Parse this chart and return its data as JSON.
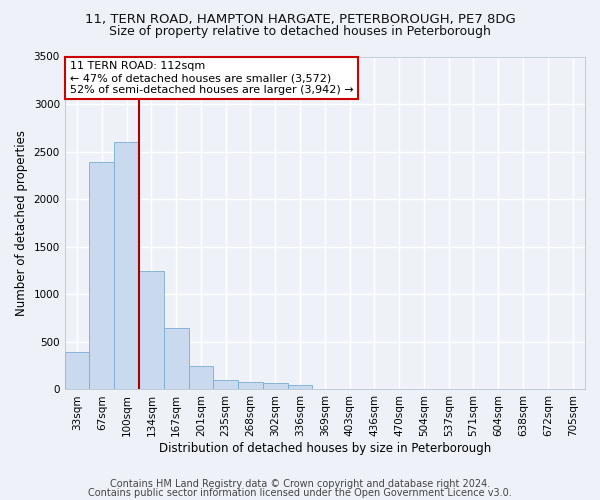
{
  "title1": "11, TERN ROAD, HAMPTON HARGATE, PETERBOROUGH, PE7 8DG",
  "title2": "Size of property relative to detached houses in Peterborough",
  "xlabel": "Distribution of detached houses by size in Peterborough",
  "ylabel": "Number of detached properties",
  "bar_color": "#c9d9ee",
  "bar_edge_color": "#7aaed4",
  "categories": [
    "33sqm",
    "67sqm",
    "100sqm",
    "134sqm",
    "167sqm",
    "201sqm",
    "235sqm",
    "268sqm",
    "302sqm",
    "336sqm",
    "369sqm",
    "403sqm",
    "436sqm",
    "470sqm",
    "504sqm",
    "537sqm",
    "571sqm",
    "604sqm",
    "638sqm",
    "672sqm",
    "705sqm"
  ],
  "values": [
    390,
    2390,
    2600,
    1250,
    650,
    250,
    100,
    80,
    65,
    50,
    10,
    0,
    0,
    0,
    0,
    0,
    0,
    0,
    0,
    0,
    0
  ],
  "ylim": [
    0,
    3500
  ],
  "yticks": [
    0,
    500,
    1000,
    1500,
    2000,
    2500,
    3000,
    3500
  ],
  "annotation_text": "11 TERN ROAD: 112sqm\n← 47% of detached houses are smaller (3,572)\n52% of semi-detached houses are larger (3,942) →",
  "annotation_box_color": "white",
  "annotation_box_edge_color": "#cc0000",
  "vline_color": "#aa0000",
  "vline_index": 2,
  "footer1": "Contains HM Land Registry data © Crown copyright and database right 2024.",
  "footer2": "Contains public sector information licensed under the Open Government Licence v3.0.",
  "background_color": "#eef2f8",
  "grid_color": "white",
  "title1_fontsize": 9.5,
  "title2_fontsize": 9,
  "xlabel_fontsize": 8.5,
  "ylabel_fontsize": 8.5,
  "tick_fontsize": 7.5,
  "footer_fontsize": 7,
  "annotation_fontsize": 8
}
